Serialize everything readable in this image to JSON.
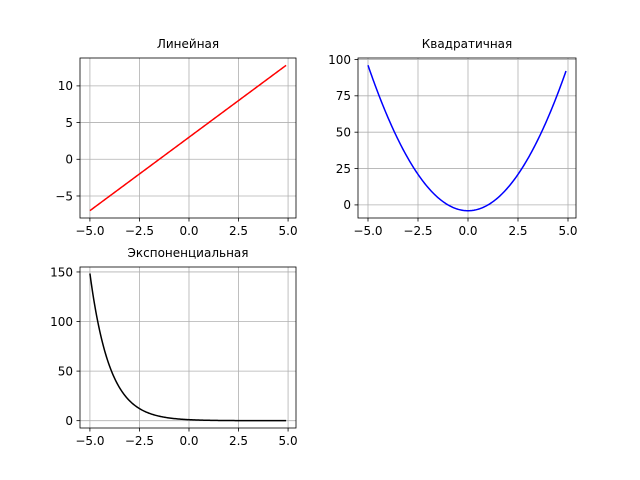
{
  "chart_data": [
    {
      "type": "line",
      "title": "Линейная",
      "xlabel": "",
      "ylabel": "",
      "xlim": [
        -5.5,
        5.4
      ],
      "ylim": [
        -8,
        13.8
      ],
      "xticks": [
        -5,
        -2.5,
        0,
        2.5,
        5
      ],
      "xtick_labels": [
        "−5.0",
        "−2.5",
        "0.0",
        "2.5",
        "5.0"
      ],
      "yticks": [
        -5,
        0,
        5,
        10
      ],
      "ytick_labels": [
        "−5",
        "0",
        "5",
        "10"
      ],
      "grid": true,
      "series": [
        {
          "color": "#ff0000",
          "function": "linear",
          "x_range": [
            -5,
            4.9
          ],
          "y_at_xmin": -7,
          "y_at_xmax": 12.8
        }
      ]
    },
    {
      "type": "line",
      "title": "Квадратичная",
      "xlabel": "",
      "ylabel": "",
      "xlim": [
        -5.5,
        5.4
      ],
      "ylim": [
        -9,
        101
      ],
      "xticks": [
        -5,
        -2.5,
        0,
        2.5,
        5
      ],
      "xtick_labels": [
        "−5.0",
        "−2.5",
        "0.0",
        "2.5",
        "5.0"
      ],
      "yticks": [
        0,
        25,
        50,
        75,
        100
      ],
      "ytick_labels": [
        "0",
        "25",
        "50",
        "75",
        "100"
      ],
      "grid": true,
      "series": [
        {
          "color": "#0000ff",
          "function": "quadratic",
          "x_range": [
            -5,
            4.9
          ],
          "coefficients": [
            4,
            0,
            -4
          ]
        }
      ]
    },
    {
      "type": "line",
      "title": "Экспоненциальная",
      "xlabel": "",
      "ylabel": "",
      "xlim": [
        -5.5,
        5.4
      ],
      "ylim": [
        -7.4,
        155
      ],
      "xticks": [
        -5,
        -2.5,
        0,
        2.5,
        5
      ],
      "xtick_labels": [
        "−5.0",
        "−2.5",
        "0.0",
        "2.5",
        "5.0"
      ],
      "yticks": [
        0,
        50,
        100,
        150
      ],
      "ytick_labels": [
        "0",
        "50",
        "100",
        "150"
      ],
      "grid": true,
      "series": [
        {
          "color": "#000000",
          "function": "exponential",
          "x_range": [
            -5,
            4.9
          ],
          "expression": "exp(-x)"
        }
      ]
    }
  ]
}
